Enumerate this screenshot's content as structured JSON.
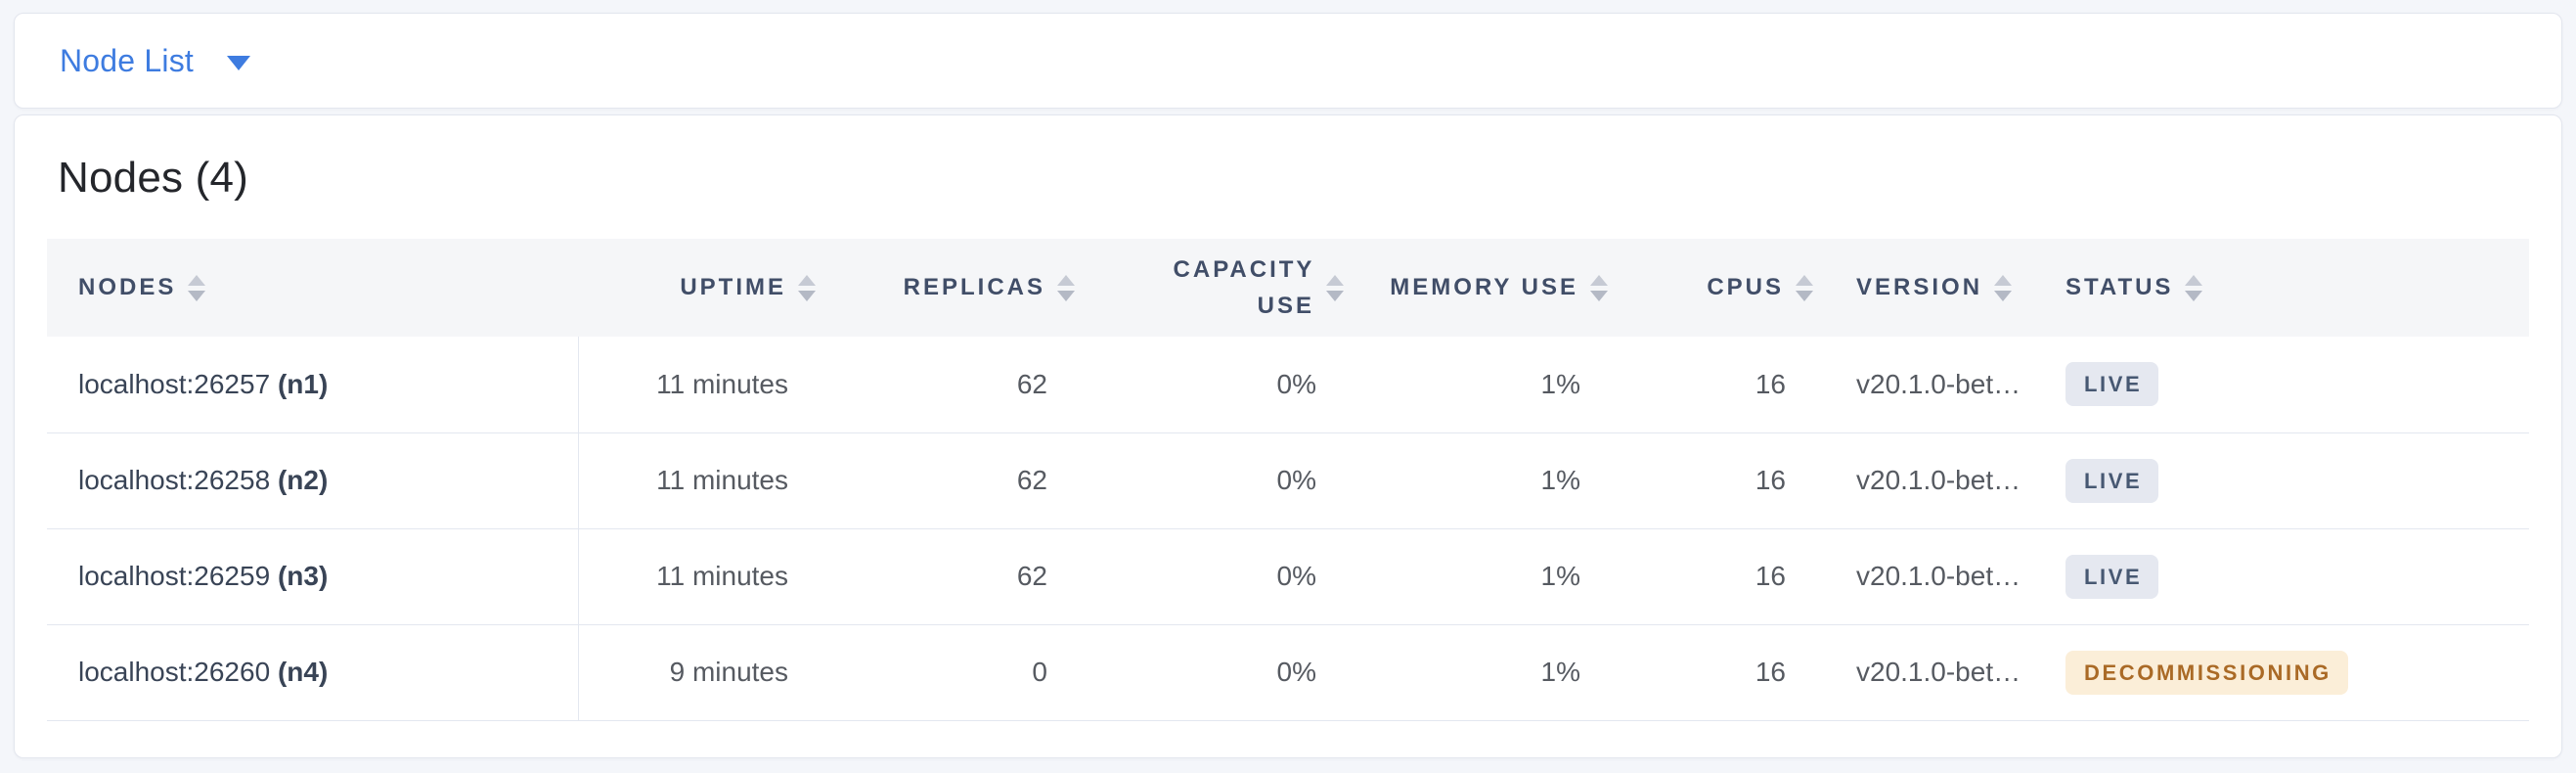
{
  "topbar": {
    "dropdown_label": "Node List"
  },
  "page": {
    "heading": "Nodes (4)"
  },
  "table": {
    "columns": [
      {
        "key": "nodes",
        "label": "NODES"
      },
      {
        "key": "uptime",
        "label": "UPTIME"
      },
      {
        "key": "replicas",
        "label": "REPLICAS"
      },
      {
        "key": "capacity",
        "label": "CAPACITY USE"
      },
      {
        "key": "memory",
        "label": "MEMORY USE"
      },
      {
        "key": "cpus",
        "label": "CPUS"
      },
      {
        "key": "version",
        "label": "VERSION"
      },
      {
        "key": "status",
        "label": "STATUS"
      }
    ],
    "rows": [
      {
        "address": "localhost:26257",
        "name": "(n1)",
        "uptime": "11 minutes",
        "replicas": "62",
        "capacity_use": "0%",
        "memory_use": "1%",
        "cpus": "16",
        "version": "v20.1.0-bet…",
        "status": "LIVE"
      },
      {
        "address": "localhost:26258",
        "name": "(n2)",
        "uptime": "11 minutes",
        "replicas": "62",
        "capacity_use": "0%",
        "memory_use": "1%",
        "cpus": "16",
        "version": "v20.1.0-bet…",
        "status": "LIVE"
      },
      {
        "address": "localhost:26259",
        "name": "(n3)",
        "uptime": "11 minutes",
        "replicas": "62",
        "capacity_use": "0%",
        "memory_use": "1%",
        "cpus": "16",
        "version": "v20.1.0-bet…",
        "status": "LIVE"
      },
      {
        "address": "localhost:26260",
        "name": "(n4)",
        "uptime": "9 minutes",
        "replicas": "0",
        "capacity_use": "0%",
        "memory_use": "1%",
        "cpus": "16",
        "version": "v20.1.0-bet…",
        "status": "DECOMMISSIONING"
      }
    ]
  },
  "colors": {
    "accent_blue": "#3e7ce0",
    "page_background": "#f4f6fa",
    "header_band": "#f5f6f8",
    "header_text": "#414e68",
    "badge_live_bg": "#e5e8f0",
    "badge_live_text": "#475872",
    "badge_decommissioning_bg": "#fbeed8",
    "badge_decommissioning_text": "#aa6a26"
  }
}
